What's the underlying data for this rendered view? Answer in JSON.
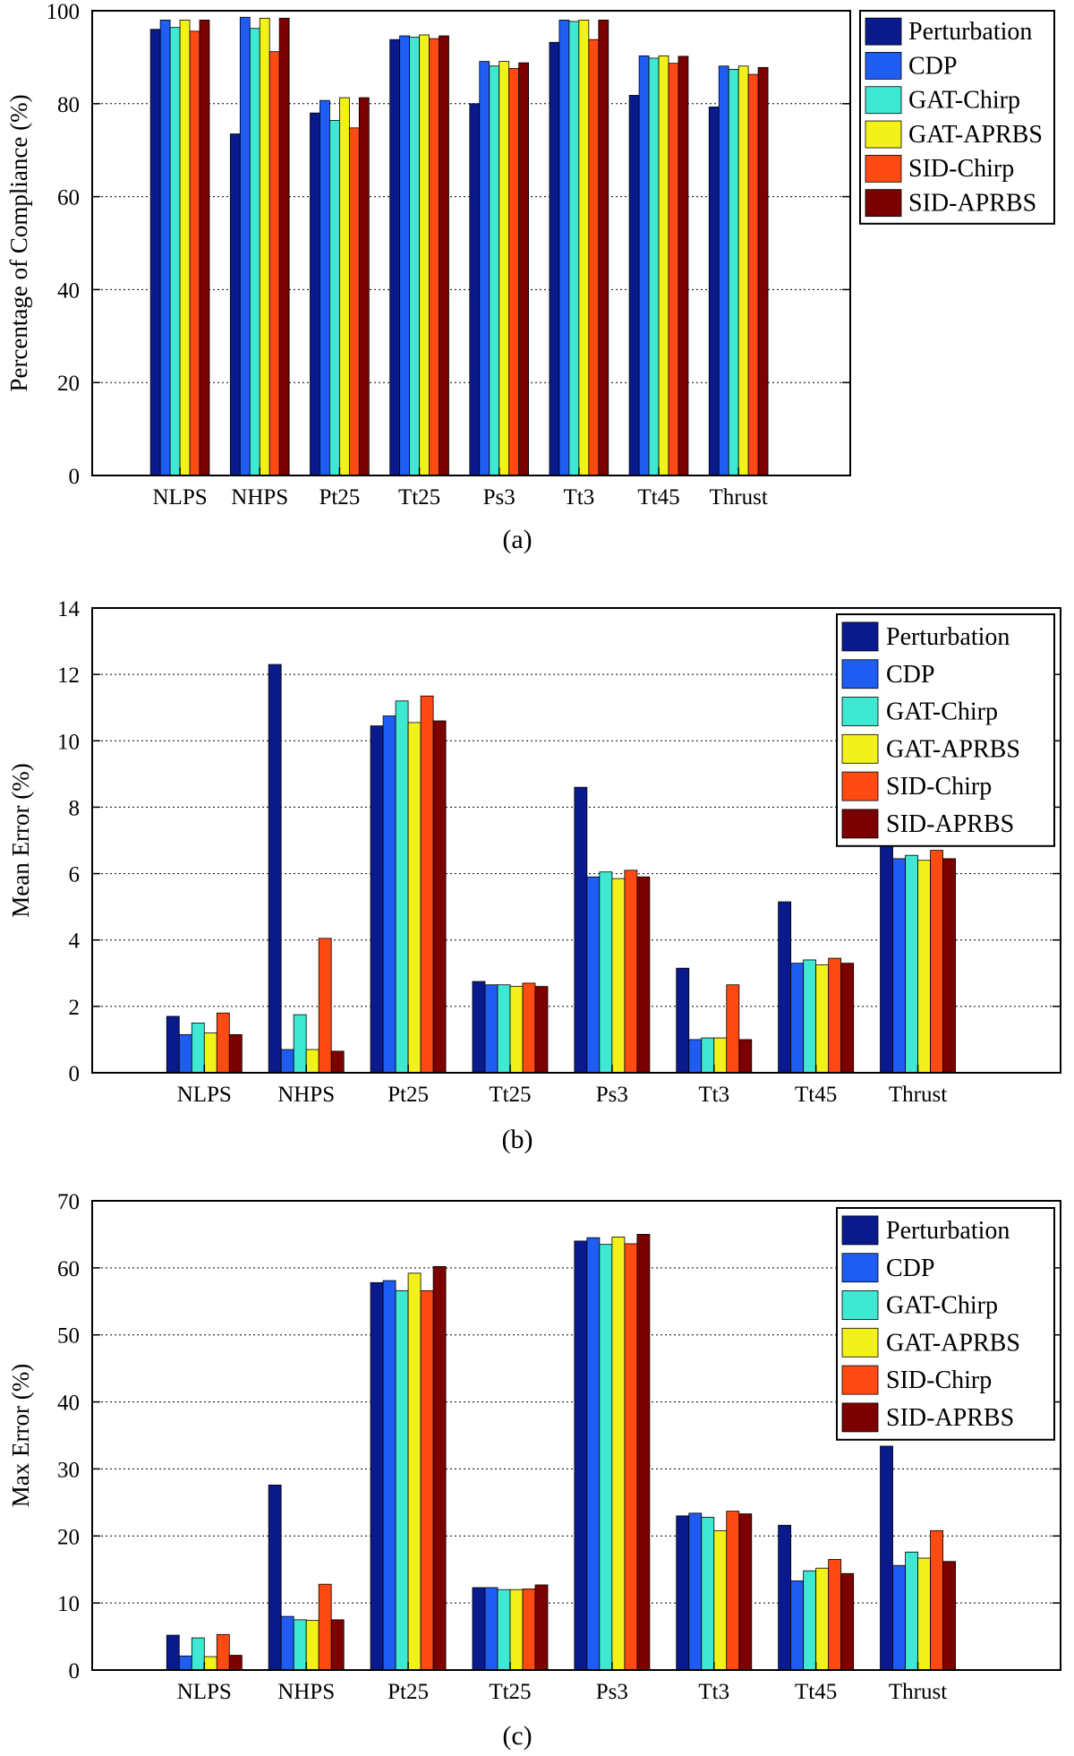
{
  "colors": {
    "Perturbation": "#0a1a8c",
    "CDP": "#1f5cf2",
    "GAT-Chirp": "#3fe8d2",
    "GAT-APRBS": "#f2f21a",
    "SID-Chirp": "#ff4a14",
    "SID-APRBS": "#7d0000"
  },
  "chart_data": [
    {
      "type": "bar",
      "caption": "(a)",
      "title": "",
      "xlabel": "",
      "ylabel": "Percentage of Compliance (%)",
      "ylim": [
        0,
        100
      ],
      "yticks": [
        0,
        20,
        40,
        60,
        80,
        100
      ],
      "grid": true,
      "legend_position": "outside-right",
      "categories": [
        "NLPS",
        "NHPS",
        "Pt25",
        "Tt25",
        "Ps3",
        "Tt3",
        "Tt45",
        "Thrust"
      ],
      "series": [
        {
          "name": "Perturbation",
          "values": [
            96,
            73.5,
            78,
            93.8,
            80,
            93.2,
            81.8,
            79.3
          ]
        },
        {
          "name": "CDP",
          "values": [
            98,
            98.6,
            80.7,
            94.6,
            89.1,
            98,
            90.3,
            88.1
          ]
        },
        {
          "name": "GAT-Chirp",
          "values": [
            96.4,
            96.2,
            76.4,
            94.3,
            88.1,
            97.7,
            89.8,
            87.4
          ]
        },
        {
          "name": "GAT-APRBS",
          "values": [
            98,
            98.4,
            81.3,
            94.8,
            89.1,
            98,
            90.3,
            88.1
          ]
        },
        {
          "name": "SID-Chirp",
          "values": [
            95.6,
            91.2,
            74.8,
            94,
            87.6,
            93.8,
            88.7,
            86.3
          ]
        },
        {
          "name": "SID-APRBS",
          "values": [
            98,
            98.4,
            81.3,
            94.6,
            88.8,
            98,
            90.2,
            87.8
          ]
        }
      ]
    },
    {
      "type": "bar",
      "caption": "(b)",
      "title": "",
      "xlabel": "",
      "ylabel": "Mean Error (%)",
      "ylim": [
        0,
        14
      ],
      "yticks": [
        0,
        2,
        4,
        6,
        8,
        10,
        12,
        14
      ],
      "grid": true,
      "legend_position": "top-right",
      "categories": [
        "NLPS",
        "NHPS",
        "Pt25",
        "Tt25",
        "Ps3",
        "Tt3",
        "Tt45",
        "Thrust"
      ],
      "series": [
        {
          "name": "Perturbation",
          "values": [
            1.7,
            12.3,
            10.45,
            2.75,
            8.6,
            3.15,
            5.15,
            7.3
          ]
        },
        {
          "name": "CDP",
          "values": [
            1.15,
            0.7,
            10.75,
            2.65,
            5.9,
            1.0,
            3.3,
            6.45
          ]
        },
        {
          "name": "GAT-Chirp",
          "values": [
            1.5,
            1.75,
            11.2,
            2.65,
            6.05,
            1.05,
            3.4,
            6.55
          ]
        },
        {
          "name": "GAT-APRBS",
          "values": [
            1.2,
            0.7,
            10.55,
            2.6,
            5.85,
            1.05,
            3.25,
            6.4
          ]
        },
        {
          "name": "SID-Chirp",
          "values": [
            1.8,
            4.05,
            11.35,
            2.7,
            6.1,
            2.65,
            3.45,
            6.7
          ]
        },
        {
          "name": "SID-APRBS",
          "values": [
            1.15,
            0.65,
            10.6,
            2.6,
            5.9,
            1.0,
            3.3,
            6.45
          ]
        }
      ]
    },
    {
      "type": "bar",
      "caption": "(c)",
      "title": "",
      "xlabel": "",
      "ylabel": "Max Error (%)",
      "ylim": [
        0,
        70
      ],
      "yticks": [
        0,
        10,
        20,
        30,
        40,
        50,
        60,
        70
      ],
      "grid": true,
      "legend_position": "top-right",
      "categories": [
        "NLPS",
        "NHPS",
        "Pt25",
        "Tt25",
        "Ps3",
        "Tt3",
        "Tt45",
        "Thrust"
      ],
      "series": [
        {
          "name": "Perturbation",
          "values": [
            5.2,
            27.6,
            57.8,
            12.3,
            64.0,
            23.0,
            21.6,
            33.4
          ]
        },
        {
          "name": "CDP",
          "values": [
            2.1,
            8.0,
            58.1,
            12.3,
            64.5,
            23.4,
            13.3,
            15.6
          ]
        },
        {
          "name": "GAT-Chirp",
          "values": [
            4.8,
            7.5,
            56.6,
            12.0,
            63.5,
            22.8,
            14.8,
            17.6
          ]
        },
        {
          "name": "GAT-APRBS",
          "values": [
            2.0,
            7.4,
            59.2,
            12.0,
            64.6,
            20.8,
            15.2,
            16.7
          ]
        },
        {
          "name": "SID-Chirp",
          "values": [
            5.3,
            12.8,
            56.6,
            12.1,
            63.6,
            23.7,
            16.5,
            20.8
          ]
        },
        {
          "name": "SID-APRBS",
          "values": [
            2.2,
            7.5,
            60.2,
            12.7,
            65.0,
            23.3,
            14.4,
            16.2
          ]
        }
      ]
    }
  ]
}
